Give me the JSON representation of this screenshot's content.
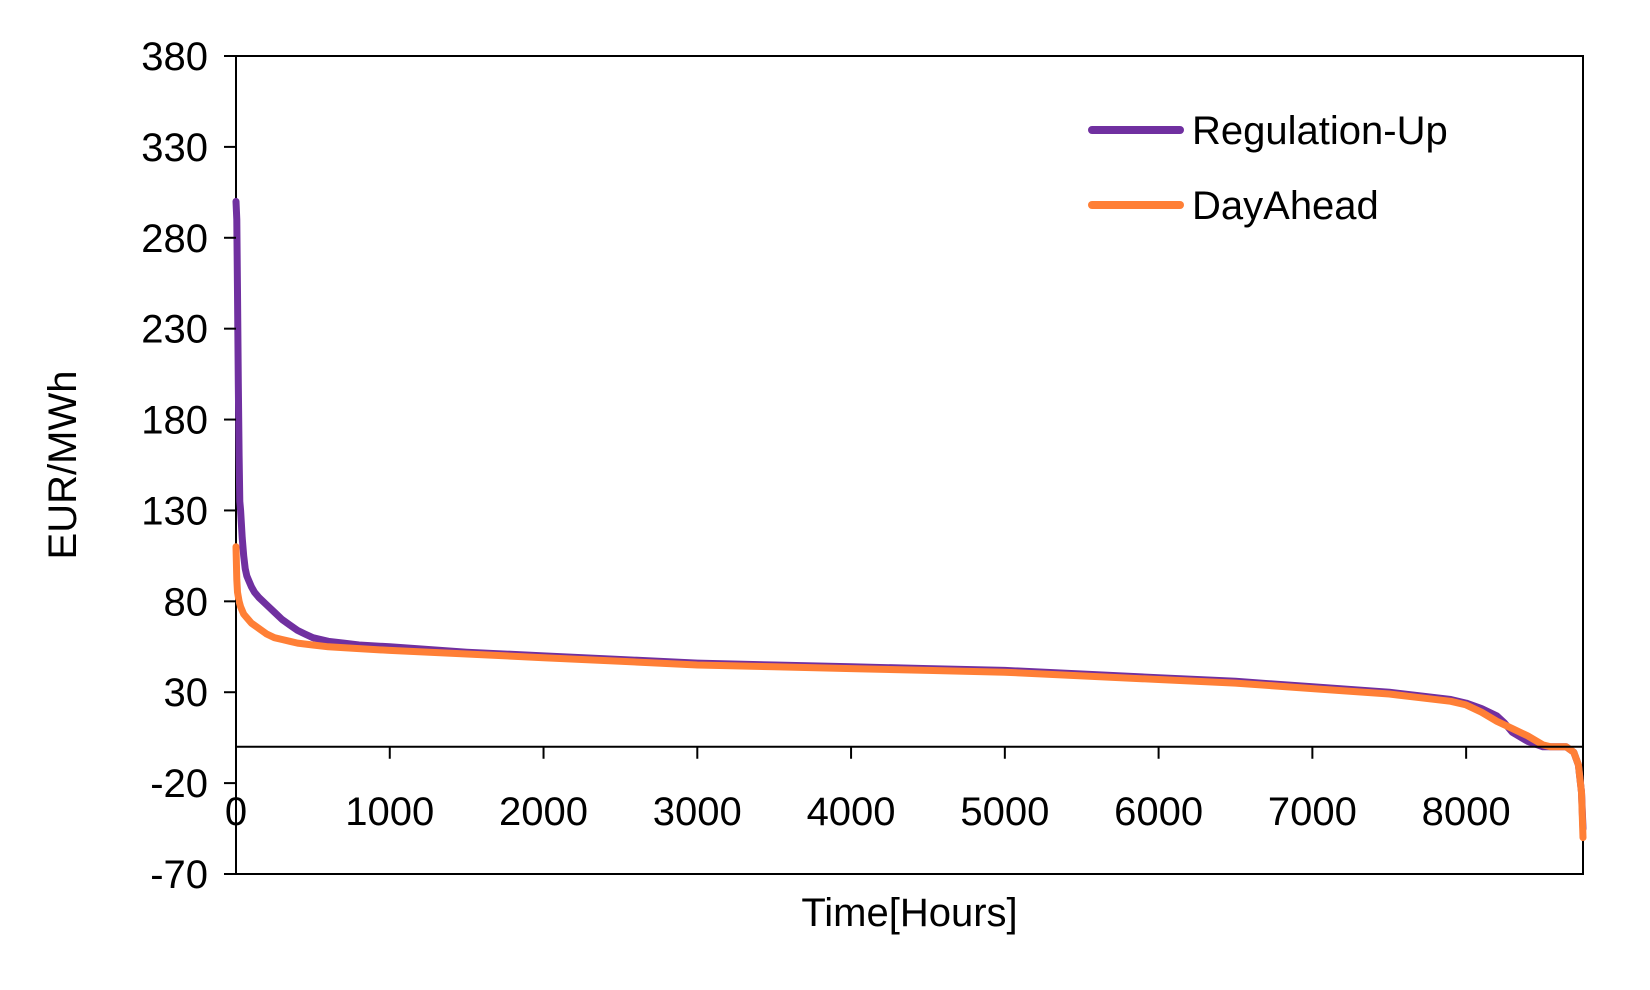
{
  "chart_data": {
    "type": "line",
    "xlabel": "Time[Hours]",
    "ylabel": "EUR/MWh",
    "xlim": [
      0,
      8760
    ],
    "ylim": [
      -70,
      380
    ],
    "yticks": [
      380,
      330,
      280,
      230,
      180,
      130,
      80,
      30,
      -20,
      -70
    ],
    "xticks": [
      0,
      1000,
      2000,
      3000,
      4000,
      5000,
      6000,
      7000,
      8000
    ],
    "grid": false,
    "legend": "top-right",
    "series": [
      {
        "name": "Regulation-Up",
        "color": "#7030A0",
        "x": [
          0,
          5,
          10,
          15,
          20,
          25,
          30,
          40,
          50,
          60,
          70,
          80,
          100,
          120,
          150,
          200,
          250,
          300,
          350,
          400,
          450,
          500,
          600,
          700,
          800,
          1000,
          1500,
          2000,
          2500,
          3000,
          3500,
          4000,
          4500,
          5000,
          5500,
          6000,
          6500,
          7000,
          7500,
          7700,
          7900,
          8000,
          8100,
          8200,
          8250,
          8300,
          8400,
          8500,
          8550,
          8600,
          8650,
          8700,
          8730,
          8750,
          8760
        ],
        "y": [
          300,
          290,
          250,
          200,
          160,
          135,
          130,
          115,
          105,
          98,
          94,
          92,
          88,
          85,
          82,
          78,
          74,
          70,
          67,
          64,
          62,
          60,
          58,
          57,
          56,
          55,
          52,
          50,
          48,
          46,
          45,
          44,
          43,
          42,
          40,
          38,
          36,
          33,
          30,
          28,
          26,
          24,
          21,
          17,
          13,
          8,
          3,
          0,
          0,
          0,
          0,
          -3,
          -10,
          -25,
          -45
        ]
      },
      {
        "name": "DayAhead",
        "color": "#FF7F36",
        "x": [
          0,
          5,
          10,
          20,
          30,
          50,
          80,
          100,
          150,
          200,
          250,
          300,
          350,
          400,
          500,
          600,
          800,
          1000,
          1500,
          2000,
          2500,
          3000,
          3500,
          4000,
          4500,
          5000,
          5500,
          6000,
          6500,
          7000,
          7500,
          7700,
          7900,
          8000,
          8100,
          8200,
          8300,
          8400,
          8500,
          8550,
          8600,
          8650,
          8700,
          8730,
          8750,
          8760
        ],
        "y": [
          110,
          92,
          85,
          80,
          77,
          73,
          70,
          68,
          65,
          62,
          60,
          59,
          58,
          57,
          56,
          55,
          54,
          53,
          51,
          49,
          47,
          45,
          44,
          43,
          42,
          41,
          39,
          37,
          35,
          32,
          29,
          27,
          25,
          23,
          19,
          14,
          10,
          6,
          1,
          0,
          0,
          0,
          -3,
          -10,
          -25,
          -50
        ]
      }
    ]
  }
}
